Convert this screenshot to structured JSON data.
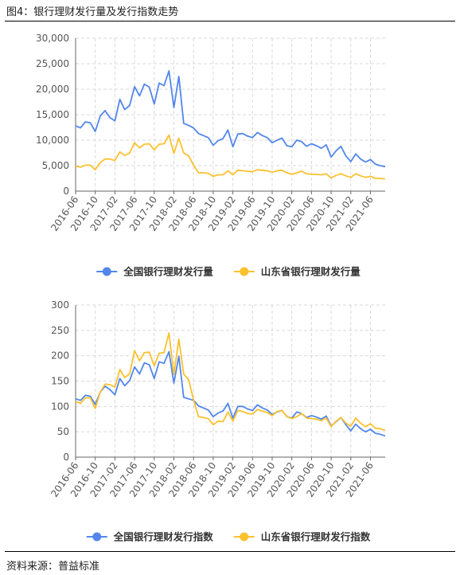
{
  "header": {
    "title": "图4：银行理财发行量及发行指数走势"
  },
  "footer": {
    "source": "资料来源：普益标准"
  },
  "colors": {
    "national": "#5286ec",
    "shandong": "#fcc12e",
    "grid": "#d9d9d9",
    "axis": "#666666"
  },
  "chart_data": [
    {
      "type": "line",
      "title": "",
      "xlabel": "",
      "ylabel": "",
      "ylim": [
        0,
        30000
      ],
      "yticks": [
        "0",
        "5,000",
        "10,000",
        "15,000",
        "20,000",
        "25,000",
        "30,000"
      ],
      "ytick_values": [
        0,
        5000,
        10000,
        15000,
        20000,
        25000,
        30000
      ],
      "x_tick_labels": [
        "2016-06",
        "2016-10",
        "2017-02",
        "2017-06",
        "2017-10",
        "2018-02",
        "2018-06",
        "2018-10",
        "2019-02",
        "2019-06",
        "2019-10",
        "2020-02",
        "2020-06",
        "2020-10",
        "2021-02",
        "2021-06"
      ],
      "x_start": "2016-06",
      "legend_position": "bottom-center",
      "grid": true,
      "series": [
        {
          "name": "全国银行理财发行量",
          "color": "#5286ec",
          "values": [
            12800,
            12400,
            13600,
            13400,
            11700,
            14700,
            15800,
            14400,
            13800,
            18000,
            16000,
            16800,
            20500,
            18700,
            21000,
            20400,
            17100,
            21200,
            20700,
            23600,
            16400,
            22500,
            13300,
            12900,
            12400,
            11300,
            10900,
            10500,
            9000,
            9900,
            10300,
            12000,
            8700,
            11200,
            11300,
            10800,
            10500,
            11500,
            10900,
            10500,
            9500,
            10000,
            10400,
            8900,
            8700,
            10000,
            9700,
            8800,
            9300,
            8900,
            8400,
            9100,
            6700,
            7900,
            8800,
            6900,
            5800,
            7300,
            6300,
            5700,
            6200,
            5300,
            5000,
            4800
          ]
        },
        {
          "name": "山东省银行理财发行量",
          "color": "#fcc12e",
          "values": [
            4900,
            4700,
            5100,
            5100,
            4200,
            5600,
            6300,
            6300,
            6000,
            7700,
            7000,
            7500,
            9500,
            8500,
            9200,
            9300,
            8100,
            9200,
            9300,
            11000,
            7400,
            10400,
            7500,
            6900,
            5100,
            3600,
            3600,
            3500,
            2900,
            3200,
            3200,
            4000,
            3200,
            4100,
            4000,
            3900,
            3800,
            4200,
            4100,
            4000,
            3700,
            4000,
            4100,
            3600,
            3300,
            3600,
            3900,
            3400,
            3300,
            3300,
            3200,
            3400,
            2600,
            3100,
            3400,
            3000,
            2700,
            3400,
            3000,
            2700,
            2900,
            2500,
            2500,
            2400
          ]
        }
      ]
    },
    {
      "type": "line",
      "title": "",
      "xlabel": "",
      "ylabel": "",
      "ylim": [
        0,
        300
      ],
      "yticks": [
        "0",
        "50",
        "100",
        "150",
        "200",
        "250",
        "300"
      ],
      "ytick_values": [
        0,
        50,
        100,
        150,
        200,
        250,
        300
      ],
      "x_tick_labels": [
        "2016-06",
        "2016-10",
        "2017-02",
        "2017-06",
        "2017-10",
        "2018-02",
        "2018-06",
        "2018-10",
        "2019-02",
        "2019-06",
        "2019-10",
        "2020-02",
        "2020-06",
        "2020-10",
        "2021-02",
        "2021-06"
      ],
      "x_start": "2016-06",
      "legend_position": "bottom-center",
      "grid": true,
      "series": [
        {
          "name": "全国银行理财发行指数",
          "color": "#5286ec",
          "values": [
            115,
            112,
            122,
            120,
            104,
            128,
            140,
            133,
            123,
            155,
            141,
            151,
            178,
            164,
            186,
            182,
            155,
            188,
            185,
            208,
            146,
            199,
            118,
            115,
            112,
            101,
            97,
            93,
            80,
            87,
            91,
            106,
            77,
            100,
            100,
            95,
            92,
            103,
            97,
            93,
            84,
            89,
            92,
            80,
            77,
            89,
            86,
            78,
            82,
            79,
            75,
            81,
            61,
            70,
            78,
            64,
            52,
            65,
            56,
            50,
            55,
            47,
            45,
            42
          ]
        },
        {
          "name": "山东省银行理财发行指数",
          "color": "#fcc12e",
          "values": [
            110,
            106,
            117,
            117,
            96,
            128,
            144,
            143,
            138,
            173,
            157,
            164,
            210,
            190,
            206,
            207,
            180,
            205,
            206,
            245,
            163,
            233,
            164,
            153,
            113,
            80,
            78,
            76,
            64,
            71,
            70,
            89,
            71,
            92,
            90,
            86,
            85,
            94,
            91,
            88,
            82,
            90,
            92,
            80,
            76,
            80,
            86,
            77,
            76,
            75,
            72,
            77,
            60,
            71,
            78,
            67,
            61,
            77,
            67,
            60,
            66,
            57,
            56,
            53
          ]
        }
      ]
    }
  ]
}
